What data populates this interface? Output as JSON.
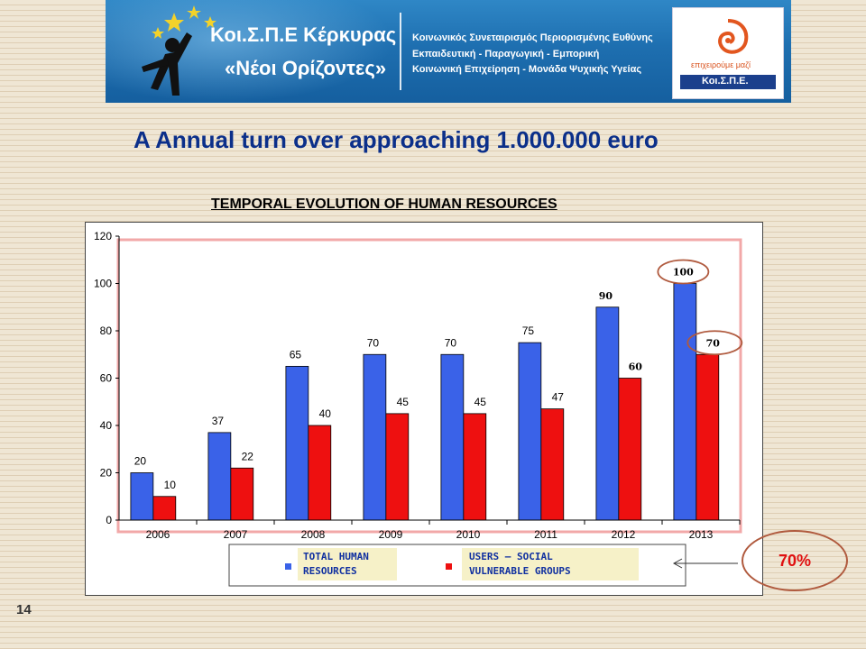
{
  "banner": {
    "org_line_1": "Κοι.Σ.Π.Ε Κέρκυρας",
    "org_line_2": "«Νέοι Ορίζοντες»",
    "description": [
      "Κοινωνικός Συνεταιρισμός Περιορισμένης Ευθύνης",
      "Εκπαιδευτική - Παραγωγική - Εμπορική",
      "Κοινωνική Επιχείρηση - Μονάδα Ψυχικής Υγείας"
    ],
    "logo_tagline": "επιχειρούμε μαζί",
    "logo_name": "Κοι.Σ.Π.Ε."
  },
  "headline": "A Annual turn over approaching 1.000.000 euro",
  "callout": {
    "percent": "70%"
  },
  "page_number": "14",
  "colors": {
    "series_total": "#3a62e8",
    "series_users": "#ee1010",
    "highlight": "#b05a3e"
  },
  "chart_data": {
    "type": "bar",
    "title": "TEMPORAL EVOLUTION  OF HUMAN RESOURCES",
    "categories": [
      "2006",
      "2007",
      "2008",
      "2009",
      "2010",
      "2011",
      "2012",
      "2013"
    ],
    "series": [
      {
        "name": "TOTAL HUMAN RESOURCES",
        "values": [
          20,
          37,
          65,
          70,
          70,
          75,
          90,
          100
        ]
      },
      {
        "name": "USERS – SOCIAL VULNERABLE GROUPS",
        "values": [
          10,
          22,
          40,
          45,
          45,
          47,
          60,
          70
        ]
      }
    ],
    "yticks": [
      0,
      20,
      40,
      60,
      80,
      100,
      120
    ],
    "ylim": [
      0,
      120
    ],
    "legend": {
      "position": "bottom",
      "total_label": [
        "TOTAL HUMAN",
        "RESOURCES"
      ],
      "users_label": [
        "USERS –  SOCIAL",
        "VULNERABLE  GROUPS"
      ]
    },
    "highlighted_labels": [
      "100",
      "70"
    ]
  }
}
